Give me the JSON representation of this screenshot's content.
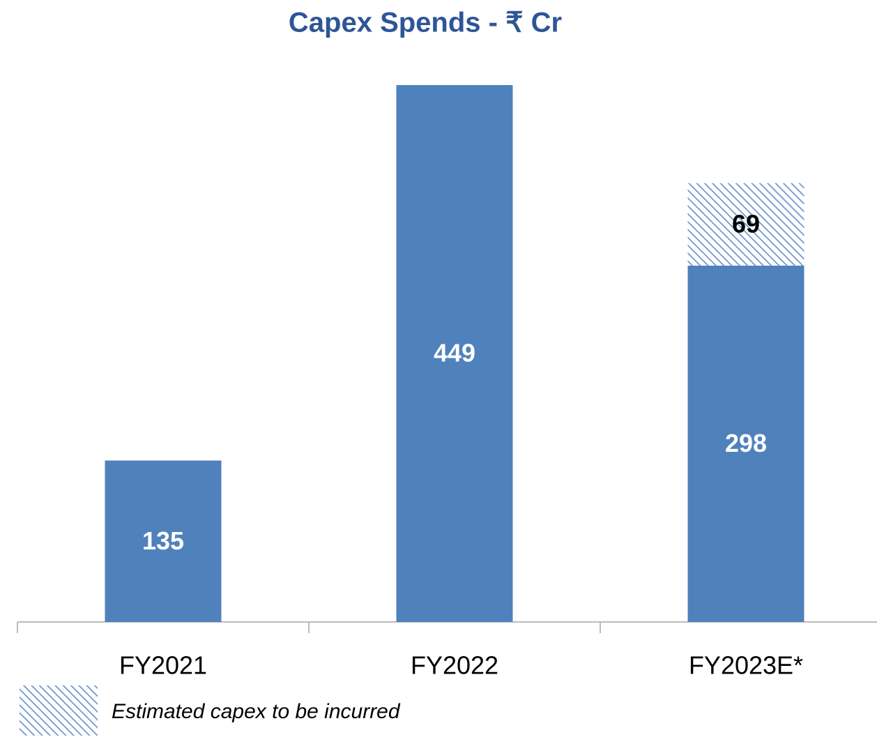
{
  "chart_data": {
    "type": "stacked_bar",
    "title": "Capex Spends - ₹ Cr",
    "categories": [
      "FY2021",
      "FY2022",
      "FY2023E*"
    ],
    "series": [
      {
        "color": "#4f81bd",
        "values": [
          135,
          449,
          298
        ]
      },
      {
        "name": "Estimated capex to be incurred",
        "color": "#4f81bd",
        "hatch": true,
        "values": [
          null,
          null,
          69
        ]
      }
    ]
  }
}
